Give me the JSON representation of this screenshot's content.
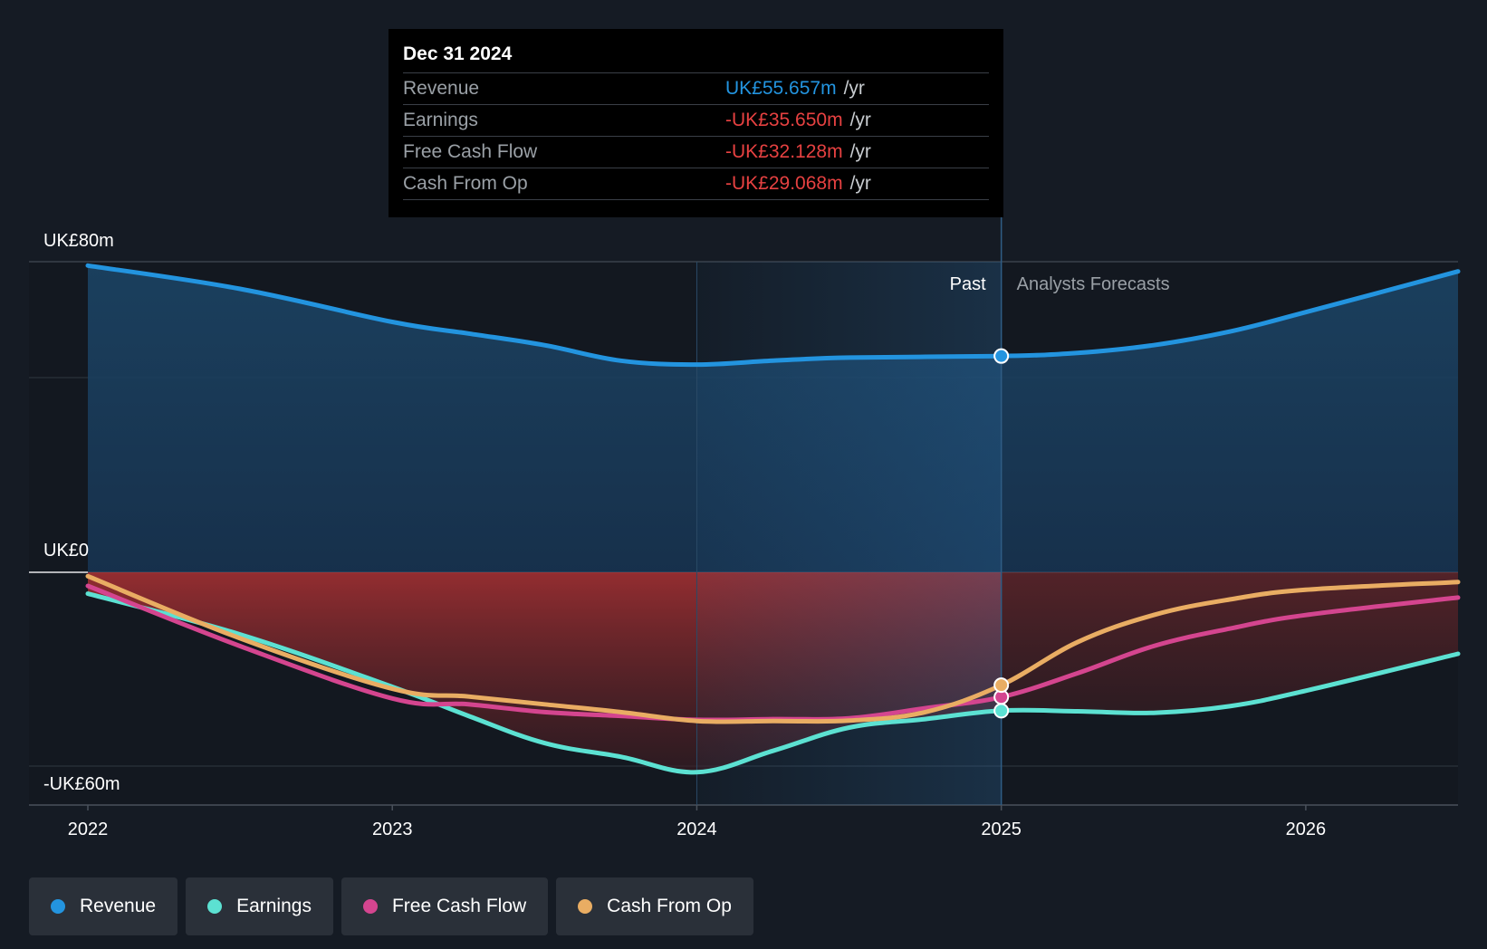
{
  "tooltip": {
    "date": "Dec 31 2024",
    "rows": [
      {
        "label": "Revenue",
        "value": "UK£55.657m",
        "unit": "/yr",
        "color": "#2394df"
      },
      {
        "label": "Earnings",
        "value": "-UK£35.650m",
        "unit": "/yr",
        "color": "#e64141"
      },
      {
        "label": "Free Cash Flow",
        "value": "-UK£32.128m",
        "unit": "/yr",
        "color": "#e64141"
      },
      {
        "label": "Cash From Op",
        "value": "-UK£29.068m",
        "unit": "/yr",
        "color": "#e64141"
      }
    ]
  },
  "legend": [
    {
      "label": "Revenue",
      "color": "#2394df"
    },
    {
      "label": "Earnings",
      "color": "#5ce1d2"
    },
    {
      "label": "Free Cash Flow",
      "color": "#d4458f"
    },
    {
      "label": "Cash From Op",
      "color": "#e9ad63"
    }
  ],
  "chart_data": {
    "type": "line",
    "y_axis_labels": [
      "UK£80m",
      "UK£0",
      "-UK£60m"
    ],
    "x_tick_labels": [
      "2022",
      "2023",
      "2024",
      "2025",
      "2026"
    ],
    "past_label": "Past",
    "forecast_label": "Analysts Forecasts",
    "past_end": 2025.0,
    "highlight_start": 2024.0,
    "xlim": [
      2022.0,
      2026.5
    ],
    "ylim": [
      -60,
      80
    ],
    "series": [
      {
        "name": "Revenue",
        "color": "#2394df",
        "x": [
          2022.0,
          2022.5,
          2023.0,
          2023.25,
          2023.5,
          2023.75,
          2024.0,
          2024.25,
          2024.5,
          2025.0,
          2025.25,
          2025.5,
          2025.75,
          2026.0,
          2026.5
        ],
        "y": [
          79,
          73,
          64.5,
          61.5,
          58.5,
          54.5,
          53.5,
          54.5,
          55.3,
          55.7,
          56.5,
          58.5,
          62,
          67,
          77.5
        ]
      },
      {
        "name": "Earnings",
        "color": "#5ce1d2",
        "x": [
          2022.0,
          2022.5,
          2023.0,
          2023.25,
          2023.5,
          2023.75,
          2024.0,
          2024.25,
          2024.5,
          2024.75,
          2025.0,
          2025.25,
          2025.5,
          2025.75,
          2026.0,
          2026.5
        ],
        "y": [
          -5.5,
          -16,
          -29.5,
          -37,
          -44,
          -47.5,
          -51.5,
          -46,
          -40,
          -37.8,
          -35.65,
          -35.8,
          -36.2,
          -34.5,
          -30.5,
          -21
        ]
      },
      {
        "name": "Free Cash Flow",
        "color": "#d4458f",
        "x": [
          2022.0,
          2022.5,
          2023.0,
          2023.25,
          2023.5,
          2023.75,
          2024.0,
          2024.25,
          2024.5,
          2024.75,
          2025.0,
          2025.25,
          2025.5,
          2025.75,
          2026.0,
          2026.5
        ],
        "y": [
          -3.5,
          -19,
          -32.5,
          -34,
          -36,
          -37,
          -38,
          -37.8,
          -37.6,
          -35,
          -32.13,
          -26,
          -19,
          -14.5,
          -11,
          -6.5
        ]
      },
      {
        "name": "Cash From Op",
        "color": "#e9ad63",
        "x": [
          2022.0,
          2022.5,
          2023.0,
          2023.25,
          2023.5,
          2023.75,
          2024.0,
          2024.25,
          2024.5,
          2024.75,
          2025.0,
          2025.25,
          2025.5,
          2025.75,
          2026.0,
          2026.5
        ],
        "y": [
          -1,
          -17,
          -30,
          -32,
          -34,
          -36,
          -38.3,
          -38.3,
          -38.2,
          -36,
          -29.07,
          -18,
          -11,
          -7,
          -4.5,
          -2.5
        ]
      }
    ],
    "highlight_point_x": 2025.0
  }
}
